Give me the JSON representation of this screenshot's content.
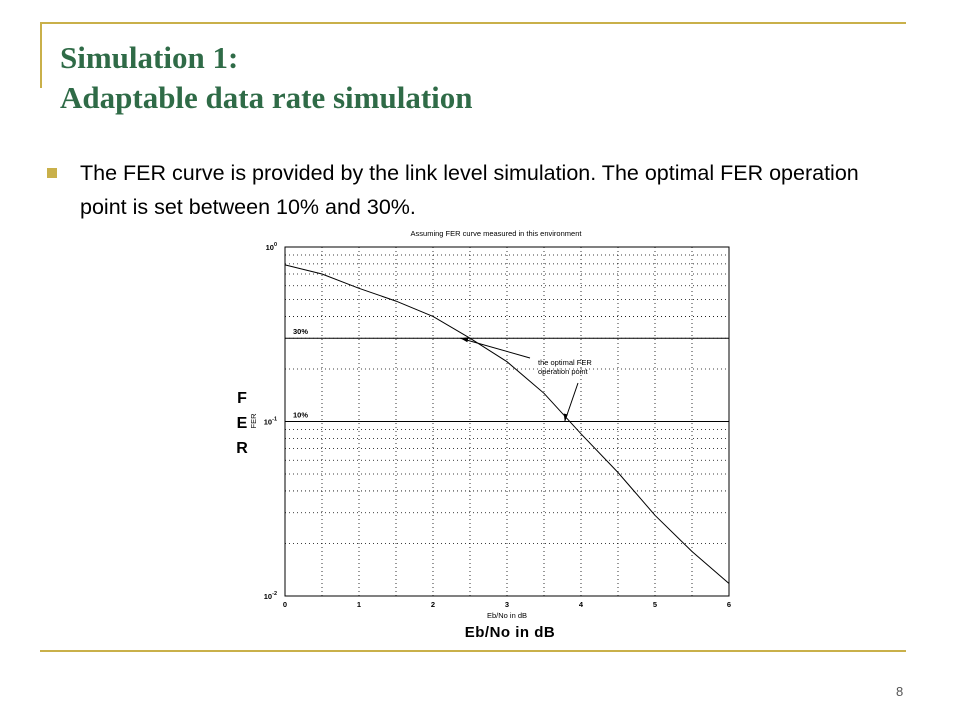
{
  "slide": {
    "title_line1": "Simulation 1:",
    "title_line2": "Adaptable data rate simulation",
    "bullet": "The FER curve is provided by the link level simulation. The optimal FER operation point is set between 10% and 30%.",
    "page_number": "8",
    "y_axis_label_large": [
      "F",
      "E",
      "R"
    ],
    "x_axis_label_large": "Eb/No in dB",
    "accent_color": "#c9b04a",
    "title_color": "#2f6b47"
  },
  "chart_data": {
    "type": "line",
    "title": "Assuming FER curve measured in this environment",
    "xlabel": "Eb/No in dB",
    "ylabel": "FER",
    "xlim": [
      0,
      6
    ],
    "ylim": [
      0.01,
      1
    ],
    "y_scale": "log",
    "grid": true,
    "x_ticks": [
      "0",
      "1",
      "2",
      "3",
      "4",
      "5",
      "6"
    ],
    "y_ticks": [
      {
        "base": "10",
        "exp": "0"
      },
      {
        "base": "10",
        "exp": "-1"
      },
      {
        "base": "10",
        "exp": "-2"
      }
    ],
    "series": [
      {
        "x": [
          -0.1,
          0.5,
          1.0,
          1.5,
          2.0,
          2.5,
          3.0,
          3.5,
          4.0,
          4.5,
          5.0,
          5.5,
          6.0
        ],
        "y": [
          0.79,
          0.7,
          0.58,
          0.49,
          0.4,
          0.3,
          0.22,
          0.145,
          0.085,
          0.051,
          0.029,
          0.018,
          0.0118
        ]
      }
    ],
    "reference_lines": [
      {
        "label": "30%",
        "y": 0.3
      },
      {
        "label": "10%",
        "y": 0.1
      }
    ],
    "annotation": {
      "lines": [
        "the optimal FER",
        "operation point"
      ],
      "points": [
        {
          "x": 2.37,
          "y": 0.3
        },
        {
          "x": 3.78,
          "y": 0.1
        }
      ]
    }
  }
}
